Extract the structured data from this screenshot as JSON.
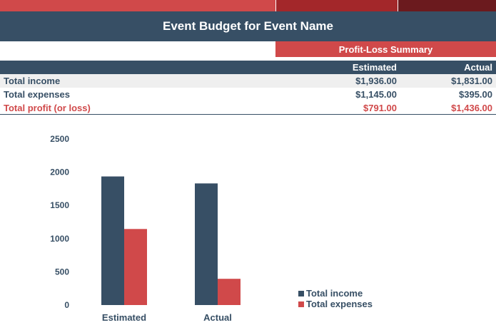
{
  "header": {
    "title": "Event Budget for Event Name",
    "summary_label": "Profit-Loss Summary",
    "band_colors": [
      "#d0494a",
      "#a3272a",
      "#6b1a1e"
    ]
  },
  "table": {
    "columns": [
      "Estimated",
      "Actual"
    ],
    "rows": [
      {
        "label": "Total income",
        "estimated": "$1,936.00",
        "actual": "$1,831.00"
      },
      {
        "label": "Total expenses",
        "estimated": "$1,145.00",
        "actual": "$395.00"
      },
      {
        "label": "Total profit (or loss)",
        "estimated": "$791.00",
        "actual": "$1,436.00"
      }
    ]
  },
  "chart_data": {
    "type": "bar",
    "categories": [
      "Estimated",
      "Actual"
    ],
    "series": [
      {
        "name": "Total income",
        "values": [
          1936,
          1831
        ],
        "color": "#374f65"
      },
      {
        "name": "Total expenses",
        "values": [
          1145,
          395
        ],
        "color": "#d0494a"
      }
    ],
    "ylim": [
      0,
      2500
    ],
    "yticks": [
      "0",
      "500",
      "1000",
      "1500",
      "2000",
      "2500"
    ],
    "grid": false,
    "legend_position": "bottom-right"
  }
}
